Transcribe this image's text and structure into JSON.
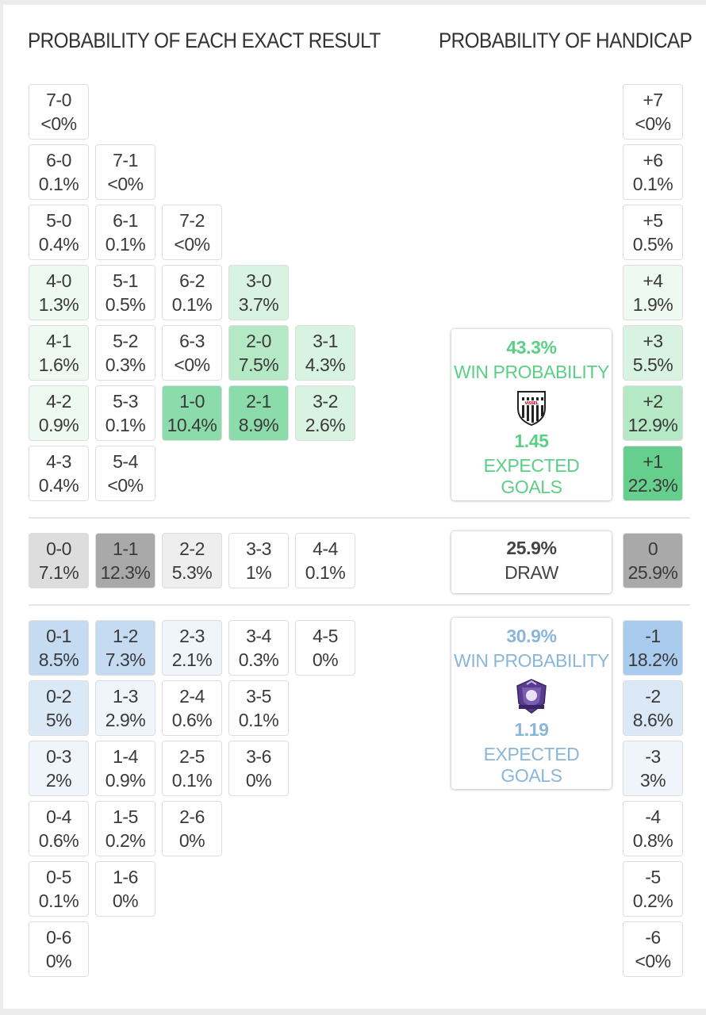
{
  "headers": {
    "exact_result": "PROBABILITY OF EACH EXACT RESULT",
    "handicap": "PROBABILITY OF HANDICAP"
  },
  "colors": {
    "home_green": "#5ccf86",
    "away_blue": "#8ab6d8",
    "draw_gray": "#9a9a9a"
  },
  "exact_results": {
    "home": [
      {
        "score": "7-0",
        "pct": "<0%",
        "tint": 0
      },
      {
        "score": "6-0",
        "pct": "0.1%",
        "tint": 0
      },
      {
        "score": "7-1",
        "pct": "<0%",
        "tint": 0
      },
      {
        "score": "5-0",
        "pct": "0.4%",
        "tint": 0
      },
      {
        "score": "6-1",
        "pct": "0.1%",
        "tint": 0
      },
      {
        "score": "7-2",
        "pct": "<0%",
        "tint": 0
      },
      {
        "score": "4-0",
        "pct": "1.3%",
        "tint": 1
      },
      {
        "score": "5-1",
        "pct": "0.5%",
        "tint": 0
      },
      {
        "score": "6-2",
        "pct": "0.1%",
        "tint": 0
      },
      {
        "score": "3-0",
        "pct": "3.7%",
        "tint": 2
      },
      {
        "score": "4-1",
        "pct": "1.6%",
        "tint": 1
      },
      {
        "score": "5-2",
        "pct": "0.3%",
        "tint": 0
      },
      {
        "score": "6-3",
        "pct": "<0%",
        "tint": 0
      },
      {
        "score": "2-0",
        "pct": "7.5%",
        "tint": 3
      },
      {
        "score": "3-1",
        "pct": "4.3%",
        "tint": 2
      },
      {
        "score": "4-2",
        "pct": "0.9%",
        "tint": 1
      },
      {
        "score": "5-3",
        "pct": "0.1%",
        "tint": 0
      },
      {
        "score": "1-0",
        "pct": "10.4%",
        "tint": 4
      },
      {
        "score": "2-1",
        "pct": "8.9%",
        "tint": 4
      },
      {
        "score": "3-2",
        "pct": "2.6%",
        "tint": 2
      },
      {
        "score": "4-3",
        "pct": "0.4%",
        "tint": 0
      },
      {
        "score": "5-4",
        "pct": "<0%",
        "tint": 0
      }
    ],
    "draw": [
      {
        "score": "0-0",
        "pct": "7.1%",
        "tint": 2
      },
      {
        "score": "1-1",
        "pct": "12.3%",
        "tint": 3
      },
      {
        "score": "2-2",
        "pct": "5.3%",
        "tint": 1
      },
      {
        "score": "3-3",
        "pct": "1%",
        "tint": 0
      },
      {
        "score": "4-4",
        "pct": "0.1%",
        "tint": 0
      }
    ],
    "away": [
      {
        "score": "0-1",
        "pct": "8.5%",
        "tint": 3
      },
      {
        "score": "1-2",
        "pct": "7.3%",
        "tint": 3
      },
      {
        "score": "2-3",
        "pct": "2.1%",
        "tint": 1
      },
      {
        "score": "3-4",
        "pct": "0.3%",
        "tint": 0
      },
      {
        "score": "4-5",
        "pct": "0%",
        "tint": 0
      },
      {
        "score": "0-2",
        "pct": "5%",
        "tint": 2
      },
      {
        "score": "1-3",
        "pct": "2.9%",
        "tint": 1
      },
      {
        "score": "2-4",
        "pct": "0.6%",
        "tint": 0
      },
      {
        "score": "3-5",
        "pct": "0.1%",
        "tint": 0
      },
      {
        "score": "0-3",
        "pct": "2%",
        "tint": 1
      },
      {
        "score": "1-4",
        "pct": "0.9%",
        "tint": 0
      },
      {
        "score": "2-5",
        "pct": "0.1%",
        "tint": 0
      },
      {
        "score": "3-6",
        "pct": "0%",
        "tint": 0
      },
      {
        "score": "0-4",
        "pct": "0.6%",
        "tint": 0
      },
      {
        "score": "1-5",
        "pct": "0.2%",
        "tint": 0
      },
      {
        "score": "2-6",
        "pct": "0%",
        "tint": 0
      },
      {
        "score": "0-5",
        "pct": "0.1%",
        "tint": 0
      },
      {
        "score": "1-6",
        "pct": "0%",
        "tint": 0
      },
      {
        "score": "0-6",
        "pct": "0%",
        "tint": 0
      }
    ]
  },
  "handicap": [
    {
      "line": "+7",
      "pct": "<0%",
      "side": "home",
      "tint": 0
    },
    {
      "line": "+6",
      "pct": "0.1%",
      "side": "home",
      "tint": 0
    },
    {
      "line": "+5",
      "pct": "0.5%",
      "side": "home",
      "tint": 0
    },
    {
      "line": "+4",
      "pct": "1.9%",
      "side": "home",
      "tint": 1
    },
    {
      "line": "+3",
      "pct": "5.5%",
      "side": "home",
      "tint": 2
    },
    {
      "line": "+2",
      "pct": "12.9%",
      "side": "home",
      "tint": 3
    },
    {
      "line": "+1",
      "pct": "22.3%",
      "side": "home",
      "tint": 5
    },
    {
      "line": "0",
      "pct": "25.9%",
      "side": "draw",
      "tint": 3
    },
    {
      "line": "-1",
      "pct": "18.2%",
      "side": "away",
      "tint": 4
    },
    {
      "line": "-2",
      "pct": "8.6%",
      "side": "away",
      "tint": 2
    },
    {
      "line": "-3",
      "pct": "3%",
      "side": "away",
      "tint": 1
    },
    {
      "line": "-4",
      "pct": "0.8%",
      "side": "away",
      "tint": 0
    },
    {
      "line": "-5",
      "pct": "0.2%",
      "side": "away",
      "tint": 0
    },
    {
      "line": "-6",
      "pct": "<0%",
      "side": "away",
      "tint": 0
    }
  ],
  "summary": {
    "home": {
      "win_pct": "43.3%",
      "win_label": "WIN PROBABILITY",
      "xg": "1.45",
      "xg_label": "EXPECTED GOALS",
      "badge_text": "VISSEL",
      "badge_icon": "vissel-kobe-crest"
    },
    "draw": {
      "pct": "25.9%",
      "label": "DRAW"
    },
    "away": {
      "win_pct": "30.9%",
      "win_label": "WIN PROBABILITY",
      "xg": "1.19",
      "xg_label": "EXPECTED GOALS",
      "badge_icon": "sanfrecce-hiroshima-crest"
    }
  }
}
